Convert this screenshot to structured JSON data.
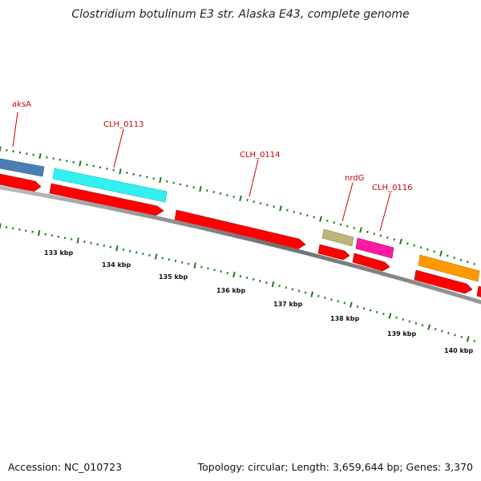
{
  "title": "Clostridium botulinum E3 str. Alaska E43, complete genome",
  "footer": {
    "accession": "Accession: NC_010723",
    "stats": "Topology: circular; Length: 3,659,644 bp; Genes: 3,370"
  },
  "colors": {
    "backbone": "#7a7a7a",
    "tick": "#1d7a1d",
    "cds_forward_red": "#ff0000",
    "label": "#cc0000"
  },
  "genes": [
    {
      "name": "aksA",
      "color": "#4a7fb5"
    },
    {
      "name": "CLH_0113",
      "color": "#33f0f0"
    },
    {
      "name": "CLH_0114",
      "color": "#ff0000"
    },
    {
      "name": "nrdG",
      "color": "#bdb476"
    },
    {
      "name": "CLH_0116",
      "color": "#ff1aa3"
    },
    {
      "name": "",
      "color": "#ff9900"
    }
  ],
  "kbp_labels": [
    "133 kbp",
    "134 kbp",
    "135 kbp",
    "136 kbp",
    "137 kbp",
    "138 kbp",
    "139 kbp",
    "140 kbp"
  ]
}
